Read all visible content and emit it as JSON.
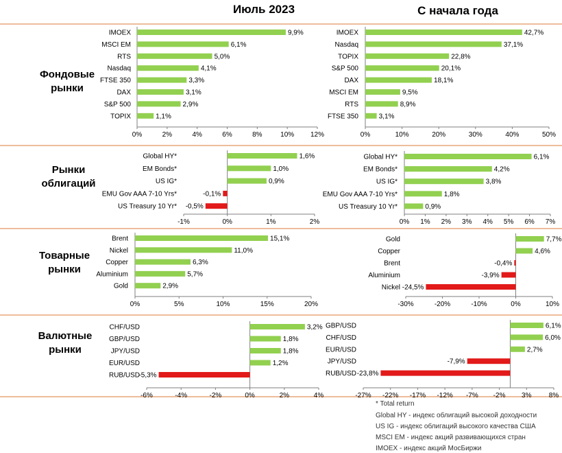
{
  "headers": {
    "left": "Июль 2023",
    "right": "С начала года"
  },
  "sections": [
    [
      "Фондовые",
      "рынки"
    ],
    [
      "Рынки",
      "облигаций"
    ],
    [
      "Товарные",
      "рынки"
    ],
    [
      "Валютные",
      "рынки"
    ]
  ],
  "notes": [
    "* Total return",
    "Global HY - индекс облигаций высокой доходности",
    "US IG - индекс облигаций высокого качества США",
    "MSCI EM - индекс акций развивающихся стран",
    "IMOEX - индекс акций МосБиржи"
  ],
  "colors": {
    "positive": "#92d050",
    "negative": "#e21a1a",
    "separator": "#e8a678"
  },
  "chart_data": [
    {
      "id": "stocks-july",
      "type": "bar",
      "orientation": "horizontal",
      "categories": [
        "IMOEX",
        "MSCI EM",
        "RTS",
        "Nasdaq",
        "FTSE 350",
        "DAX",
        "S&P 500",
        "TOPIX"
      ],
      "values": [
        9.9,
        6.1,
        5.0,
        4.1,
        3.3,
        3.1,
        2.9,
        1.1
      ],
      "labels": [
        "9,9%",
        "6,1%",
        "5,0%",
        "4,1%",
        "3,3%",
        "3,1%",
        "2,9%",
        "1,1%"
      ],
      "ticks": [
        0,
        2,
        4,
        6,
        8,
        10,
        12
      ],
      "tick_labels": [
        "0%",
        "2%",
        "4%",
        "6%",
        "8%",
        "10%",
        "12%"
      ],
      "xlim": [
        0,
        12
      ]
    },
    {
      "id": "stocks-ytd",
      "type": "bar",
      "orientation": "horizontal",
      "categories": [
        "IMOEX",
        "Nasdaq",
        "TOPIX",
        "S&P 500",
        "DAX",
        "MSCI EM",
        "RTS",
        "FTSE 350"
      ],
      "values": [
        42.7,
        37.1,
        22.8,
        20.1,
        18.1,
        9.5,
        8.9,
        3.1
      ],
      "labels": [
        "42,7%",
        "37,1%",
        "22,8%",
        "20,1%",
        "18,1%",
        "9,5%",
        "8,9%",
        "3,1%"
      ],
      "ticks": [
        0,
        10,
        20,
        30,
        40,
        50
      ],
      "tick_labels": [
        "0%",
        "10%",
        "20%",
        "30%",
        "40%",
        "50%"
      ],
      "xlim": [
        0,
        50
      ]
    },
    {
      "id": "bonds-july",
      "type": "bar",
      "orientation": "horizontal",
      "categories": [
        "Global HY*",
        "EM Bonds*",
        "US IG*",
        "EMU Gov AAA 7-10 Yrs*",
        "US Treasury 10 Yr*"
      ],
      "values": [
        1.6,
        1.0,
        0.9,
        -0.1,
        -0.5
      ],
      "labels": [
        "1,6%",
        "1,0%",
        "0,9%",
        "-0,1%",
        "-0,5%"
      ],
      "ticks": [
        -1,
        0,
        1,
        2
      ],
      "tick_labels": [
        "-1%",
        "0%",
        "1%",
        "2%"
      ],
      "xlim": [
        -1,
        2
      ]
    },
    {
      "id": "bonds-ytd",
      "type": "bar",
      "orientation": "horizontal",
      "categories": [
        "Global HY*",
        "EM Bonds*",
        "US IG*",
        "EMU Gov AAA 7-10 Yrs*",
        "US Treasury 10 Yr*"
      ],
      "values": [
        6.1,
        4.2,
        3.8,
        1.8,
        0.9
      ],
      "labels": [
        "6,1%",
        "4,2%",
        "3,8%",
        "1,8%",
        "0,9%"
      ],
      "ticks": [
        0,
        1,
        2,
        3,
        4,
        5,
        6,
        7
      ],
      "tick_labels": [
        "0%",
        "1%",
        "2%",
        "3%",
        "4%",
        "5%",
        "6%",
        "7%"
      ],
      "xlim": [
        0,
        7
      ]
    },
    {
      "id": "commodities-july",
      "type": "bar",
      "orientation": "horizontal",
      "categories": [
        "Brent",
        "Nickel",
        "Copper",
        "Aluminium",
        "Gold"
      ],
      "values": [
        15.1,
        11.0,
        6.3,
        5.7,
        2.9
      ],
      "labels": [
        "15,1%",
        "11,0%",
        "6,3%",
        "5,7%",
        "2,9%"
      ],
      "ticks": [
        0,
        5,
        10,
        15,
        20
      ],
      "tick_labels": [
        "0%",
        "5%",
        "10%",
        "15%",
        "20%"
      ],
      "xlim": [
        0,
        20
      ]
    },
    {
      "id": "commodities-ytd",
      "type": "bar",
      "orientation": "horizontal",
      "categories": [
        "Gold",
        "Copper",
        "Brent",
        "Aluminium",
        "Nickel"
      ],
      "values": [
        7.7,
        4.6,
        -0.4,
        -3.9,
        -24.5
      ],
      "labels": [
        "7,7%",
        "4,6%",
        "-0,4%",
        "-3,9%",
        "-24,5%"
      ],
      "ticks": [
        -30,
        -20,
        -10,
        0,
        10
      ],
      "tick_labels": [
        "-30%",
        "-20%",
        "-10%",
        "0%",
        "10%"
      ],
      "xlim": [
        -30,
        10
      ]
    },
    {
      "id": "fx-july",
      "type": "bar",
      "orientation": "horizontal",
      "categories": [
        "CHF/USD",
        "GBP/USD",
        "JPY/USD",
        "EUR/USD",
        "RUB/USD"
      ],
      "values": [
        3.2,
        1.8,
        1.8,
        1.2,
        -5.3
      ],
      "labels": [
        "3,2%",
        "1,8%",
        "1,8%",
        "1,2%",
        "-5,3%"
      ],
      "ticks": [
        -6,
        -4,
        -2,
        0,
        2,
        4
      ],
      "tick_labels": [
        "-6%",
        "-4%",
        "-2%",
        "0%",
        "2%",
        "4%"
      ],
      "xlim": [
        -6,
        4
      ]
    },
    {
      "id": "fx-ytd",
      "type": "bar",
      "orientation": "horizontal",
      "categories": [
        "GBP/USD",
        "CHF/USD",
        "EUR/USD",
        "JPY/USD",
        "RUB/USD"
      ],
      "values": [
        6.1,
        6.0,
        2.7,
        -7.9,
        -23.8
      ],
      "labels": [
        "6,1%",
        "6,0%",
        "2,7%",
        "-7,9%",
        "-23,8%"
      ],
      "ticks": [
        -27,
        -22,
        -17,
        -12,
        -7,
        -2,
        3,
        8
      ],
      "tick_labels": [
        "-27%",
        "-22%",
        "-17%",
        "-12%",
        "-7%",
        "-2%",
        "3%",
        "8%"
      ],
      "xlim": [
        -27,
        8
      ]
    }
  ]
}
